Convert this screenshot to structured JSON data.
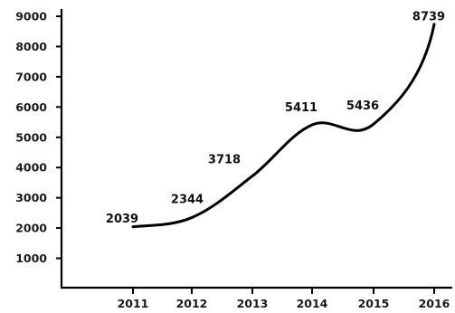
{
  "chart_data": {
    "type": "line",
    "title": "",
    "xlabel": "",
    "ylabel": "",
    "categories": [
      "2011",
      "2012",
      "2013",
      "2014",
      "2015",
      "2016"
    ],
    "series": [
      {
        "values": [
          2039,
          2344,
          3718,
          5411,
          5436,
          8739
        ],
        "data_labels": [
          "2039",
          "2344",
          "3718",
          "5411",
          "5436",
          "8739"
        ],
        "color": "#000000"
      }
    ],
    "yticks": [
      {
        "value": 1000,
        "label": "1000"
      },
      {
        "value": 2000,
        "label": "2000"
      },
      {
        "value": 3000,
        "label": "3000"
      },
      {
        "value": 4000,
        "label": "4000"
      },
      {
        "value": 5000,
        "label": "5000"
      },
      {
        "value": 6000,
        "label": "6000"
      },
      {
        "value": 7000,
        "label": "7000"
      },
      {
        "value": 8000,
        "label": "8000"
      },
      {
        "value": 9000,
        "label": "9000"
      }
    ],
    "ylim": [
      0,
      9000
    ],
    "grid": false,
    "legend": "none"
  }
}
